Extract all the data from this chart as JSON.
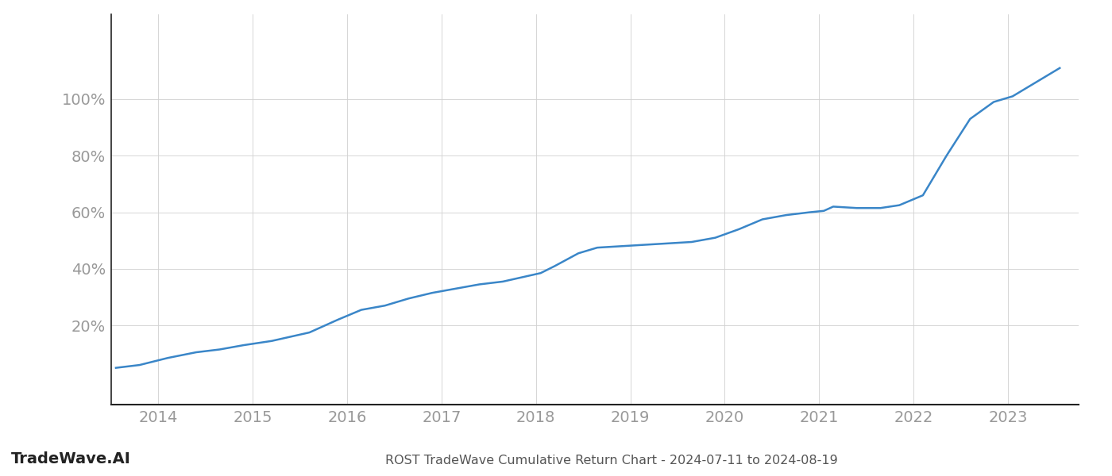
{
  "title": "ROST TradeWave Cumulative Return Chart - 2024-07-11 to 2024-08-19",
  "watermark": "TradeWave.AI",
  "line_color": "#3a86c8",
  "background_color": "#ffffff",
  "grid_color": "#d0d0d0",
  "x_years": [
    2014,
    2015,
    2016,
    2017,
    2018,
    2019,
    2020,
    2021,
    2022,
    2023
  ],
  "x_data": [
    2013.55,
    2013.8,
    2014.1,
    2014.4,
    2014.65,
    2014.9,
    2015.2,
    2015.6,
    2015.9,
    2016.15,
    2016.4,
    2016.65,
    2016.9,
    2017.15,
    2017.4,
    2017.65,
    2017.85,
    2018.05,
    2018.2,
    2018.45,
    2018.65,
    2018.9,
    2019.15,
    2019.4,
    2019.65,
    2019.9,
    2020.15,
    2020.4,
    2020.65,
    2020.9,
    2021.05,
    2021.15,
    2021.4,
    2021.65,
    2021.85,
    2022.1,
    2022.35,
    2022.6,
    2022.85,
    2023.05,
    2023.35,
    2023.55
  ],
  "y_data": [
    5.0,
    6.0,
    8.5,
    10.5,
    11.5,
    13.0,
    14.5,
    17.5,
    22.0,
    25.5,
    27.0,
    29.5,
    31.5,
    33.0,
    34.5,
    35.5,
    37.0,
    38.5,
    41.0,
    45.5,
    47.5,
    48.0,
    48.5,
    49.0,
    49.5,
    51.0,
    54.0,
    57.5,
    59.0,
    60.0,
    60.5,
    62.0,
    61.5,
    61.5,
    62.5,
    66.0,
    80.0,
    93.0,
    99.0,
    101.0,
    107.0,
    111.0
  ],
  "yticks": [
    20,
    40,
    60,
    80,
    100
  ],
  "ylim": [
    -8,
    130
  ],
  "xlim": [
    2013.5,
    2023.75
  ],
  "title_fontsize": 11.5,
  "tick_fontsize": 14,
  "watermark_fontsize": 14,
  "title_color": "#555555",
  "tick_color": "#999999",
  "watermark_color": "#222222",
  "spine_color": "#222222"
}
